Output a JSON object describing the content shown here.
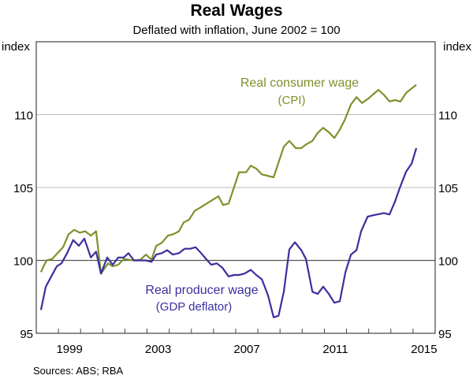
{
  "chart_data": {
    "type": "line",
    "title": "Real Wages",
    "subtitle": "Deflated with inflation, June 2002 = 100",
    "ylabel_left": "index",
    "ylabel_right": "index",
    "xlim": [
      1998,
      2016
    ],
    "ylim": [
      95,
      115
    ],
    "yticks": [
      95,
      100,
      105,
      110
    ],
    "ytick_labels": [
      "95",
      "100",
      "105",
      "110"
    ],
    "xtick_labels": [
      {
        "year": 1999,
        "label": "1999"
      },
      {
        "year": 2003,
        "label": "2003"
      },
      {
        "year": 2007,
        "label": "2007"
      },
      {
        "year": 2011,
        "label": "2011"
      },
      {
        "year": 2015,
        "label": "2015"
      }
    ],
    "reference_line": 100,
    "grid": true,
    "source": "Sources:   ABS; RBA",
    "series": [
      {
        "name": "Real consumer wage",
        "name_line2": "(CPI)",
        "color": "#7d912b",
        "x": [
          1998.21,
          1998.46,
          1998.71,
          1998.96,
          1999.21,
          1999.46,
          1999.71,
          1999.96,
          2000.21,
          2000.46,
          2000.7,
          2000.92,
          2001.24,
          2001.45,
          2001.7,
          2001.95,
          2002.41,
          2002.7,
          2002.95,
          2003.2,
          2003.41,
          2003.66,
          2003.94,
          2004.19,
          2004.44,
          2004.65,
          2004.9,
          2005.15,
          2005.37,
          2005.69,
          2005.9,
          2006.22,
          2006.43,
          2006.68,
          2007.15,
          2007.47,
          2007.68,
          2007.93,
          2008.18,
          2008.71,
          2009.17,
          2009.42,
          2009.71,
          2009.96,
          2010.17,
          2010.46,
          2010.7,
          2010.95,
          2011.2,
          2011.45,
          2011.67,
          2011.91,
          2012.2,
          2012.45,
          2012.7,
          2012.98,
          2013.44,
          2013.69,
          2013.94,
          2014.19,
          2014.44,
          2014.69,
          2014.94,
          2015.15
        ],
        "y": [
          99.2,
          100.0,
          100.1,
          100.5,
          100.9,
          101.8,
          102.1,
          101.9,
          102.0,
          101.7,
          102.0,
          99.1,
          99.8,
          99.6,
          99.7,
          100.1,
          100.0,
          100.05,
          100.4,
          100.05,
          101.0,
          101.2,
          101.7,
          101.8,
          102.0,
          102.6,
          102.8,
          103.4,
          103.6,
          103.9,
          104.1,
          104.4,
          103.8,
          103.9,
          106.05,
          106.05,
          106.5,
          106.3,
          105.9,
          105.7,
          107.8,
          108.2,
          107.7,
          107.7,
          107.95,
          108.2,
          108.75,
          109.1,
          108.8,
          108.4,
          108.9,
          109.6,
          110.7,
          111.2,
          110.8,
          111.1,
          111.7,
          111.35,
          110.9,
          111.0,
          110.9,
          111.5,
          111.8,
          112.05
        ]
      },
      {
        "name": "Real producer wage",
        "name_line2": "(GDP deflator)",
        "color": "#3b2f9e",
        "x": [
          1998.21,
          1998.43,
          1998.68,
          1998.93,
          1999.14,
          1999.39,
          1999.67,
          1999.92,
          2000.17,
          2000.46,
          2000.7,
          2000.92,
          2001.2,
          2001.45,
          2001.7,
          2001.95,
          2002.16,
          2002.41,
          2002.95,
          2003.2,
          2003.41,
          2003.66,
          2003.91,
          2004.16,
          2004.44,
          2004.69,
          2004.94,
          2005.19,
          2005.44,
          2005.69,
          2005.9,
          2006.15,
          2006.4,
          2006.68,
          2006.93,
          2007.15,
          2007.4,
          2007.68,
          2007.93,
          2008.18,
          2008.46,
          2008.71,
          2008.93,
          2009.17,
          2009.42,
          2009.67,
          2009.96,
          2010.17,
          2010.46,
          2010.7,
          2010.95,
          2011.2,
          2011.45,
          2011.7,
          2011.95,
          2012.2,
          2012.45,
          2012.66,
          2012.95,
          2013.2,
          2013.69,
          2013.94,
          2014.19,
          2014.41,
          2014.69,
          2014.94,
          2015.15
        ],
        "y": [
          96.6,
          98.2,
          98.9,
          99.6,
          99.8,
          100.5,
          101.4,
          101.0,
          101.5,
          100.2,
          100.6,
          99.1,
          100.2,
          99.7,
          100.2,
          100.2,
          100.5,
          100.0,
          100.0,
          99.9,
          100.4,
          100.5,
          100.7,
          100.4,
          100.5,
          100.8,
          100.8,
          100.9,
          100.5,
          100.05,
          99.7,
          99.8,
          99.5,
          98.9,
          99.0,
          99.0,
          99.1,
          99.35,
          99.0,
          98.7,
          97.6,
          96.1,
          96.2,
          97.85,
          100.75,
          101.25,
          100.7,
          100.1,
          97.85,
          97.7,
          98.2,
          97.7,
          97.1,
          97.2,
          99.2,
          100.4,
          100.7,
          102.0,
          103.0,
          103.1,
          103.25,
          103.15,
          104.05,
          105.0,
          106.1,
          106.65,
          107.7
        ]
      }
    ]
  }
}
